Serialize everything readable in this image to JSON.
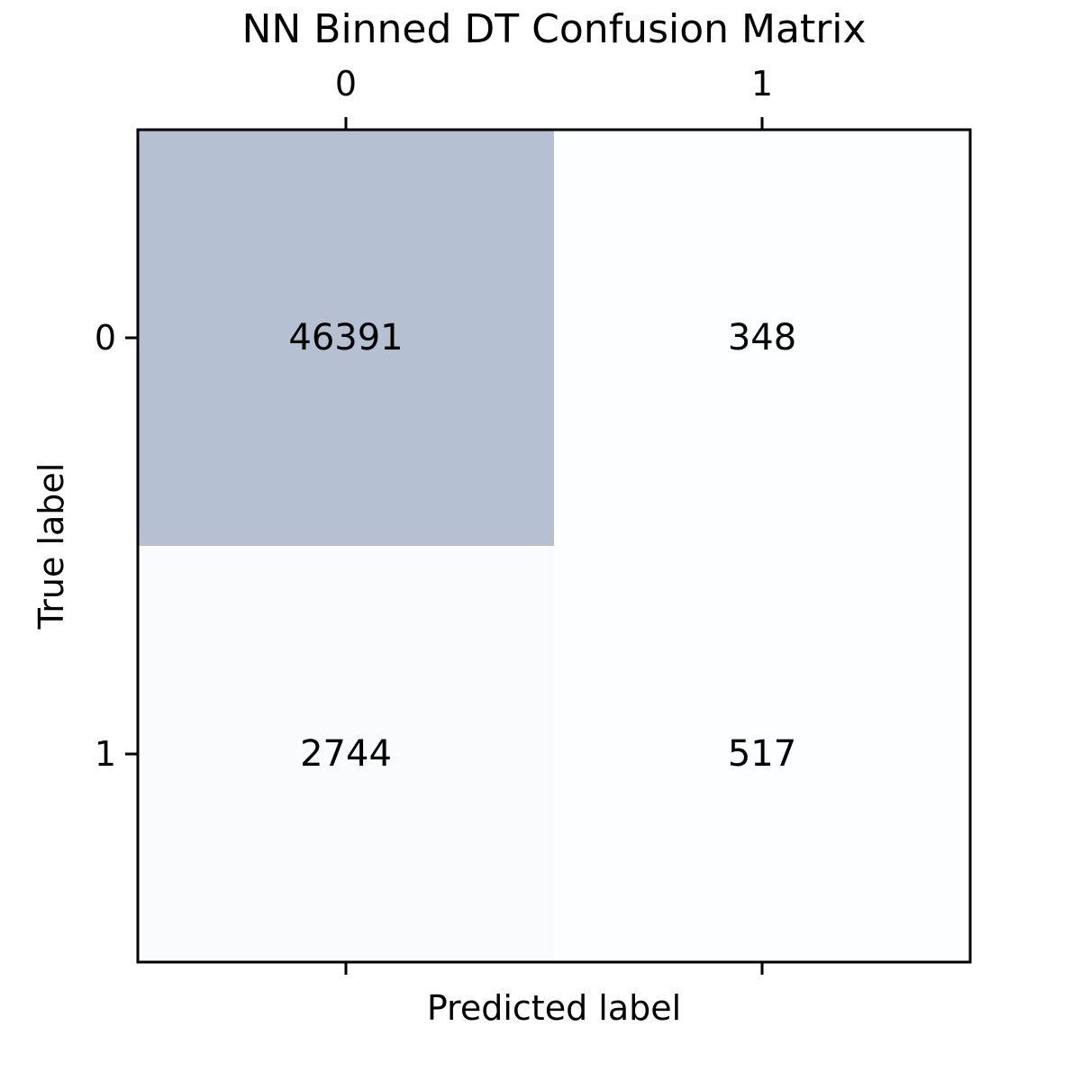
{
  "chart_data": {
    "type": "heatmap",
    "title": "NN Binned DT Confusion Matrix",
    "xlabel": "Predicted label",
    "ylabel": "True label",
    "x_categories": [
      "0",
      "1"
    ],
    "y_categories": [
      "0",
      "1"
    ],
    "values": [
      [
        46391,
        348
      ],
      [
        2744,
        517
      ]
    ],
    "x_tick_position": "top",
    "grid": false,
    "colormap": {
      "low": "#f7fbff",
      "high": "#08306b",
      "alpha": 0.3
    }
  }
}
